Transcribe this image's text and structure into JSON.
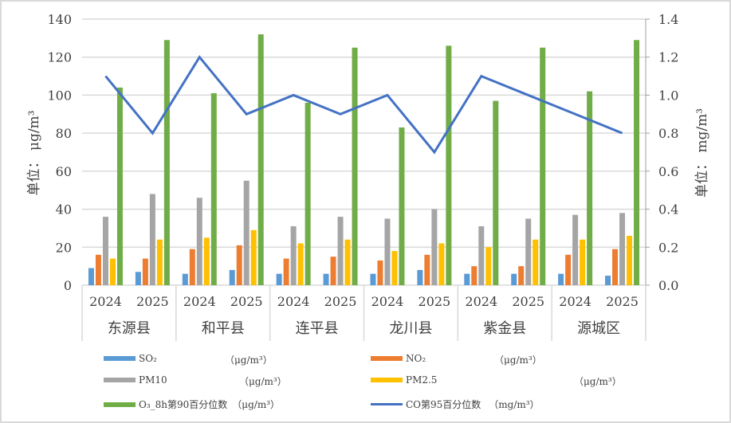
{
  "chart_data": {
    "type": "bar+line",
    "title": "",
    "ylabel": "单位：μg/m³",
    "y2label": "单位：mg/m³",
    "ylim": [
      0,
      140
    ],
    "y2lim": [
      0,
      1.4
    ],
    "yticks": [
      "0",
      "20",
      "40",
      "60",
      "80",
      "100",
      "120",
      "140"
    ],
    "y2ticks": [
      "0.0",
      "0.2",
      "0.4",
      "0.6",
      "0.8",
      "1.0",
      "1.2",
      "1.4"
    ],
    "grid": true,
    "legend_position": "bottom",
    "groups": [
      "东源县",
      "和平县",
      "连平县",
      "龙川县",
      "紫金县",
      "源城区"
    ],
    "categories": [
      "2024",
      "2025",
      "2024",
      "2025",
      "2024",
      "2025",
      "2024",
      "2025",
      "2024",
      "2025",
      "2024",
      "2025"
    ],
    "series": [
      {
        "name": "SO₂",
        "unit": "（μg/m³）",
        "type": "bar",
        "axis": "left",
        "color": "#5b9bd5",
        "values": [
          9,
          7,
          6,
          8,
          6,
          6,
          6,
          8,
          6,
          6,
          6,
          5
        ]
      },
      {
        "name": "NO₂",
        "unit": "（μg/m³）",
        "type": "bar",
        "axis": "left",
        "color": "#ed7d31",
        "values": [
          16,
          14,
          19,
          21,
          14,
          15,
          13,
          16,
          10,
          10,
          16,
          19
        ]
      },
      {
        "name": "PM10",
        "unit": "（μg/m³）",
        "type": "bar",
        "axis": "left",
        "color": "#a5a5a5",
        "values": [
          36,
          48,
          46,
          55,
          31,
          36,
          35,
          40,
          31,
          35,
          37,
          38
        ]
      },
      {
        "name": "PM2.5",
        "unit": "（μg/m³）",
        "type": "bar",
        "axis": "left",
        "color": "#ffc000",
        "values": [
          14,
          24,
          25,
          29,
          22,
          24,
          18,
          22,
          20,
          24,
          24,
          26
        ]
      },
      {
        "name": "O₃_8h第90百分位数",
        "unit": "（μg/m³）",
        "type": "bar",
        "axis": "left",
        "color": "#70ad47",
        "values": [
          104,
          129,
          101,
          132,
          96,
          125,
          83,
          126,
          97,
          125,
          102,
          129
        ]
      },
      {
        "name": "CO第95百分位数",
        "unit": "（mg/m³）",
        "type": "line",
        "axis": "right",
        "color": "#4472c4",
        "values": [
          1.1,
          0.8,
          1.2,
          0.9,
          1.0,
          0.9,
          1.0,
          0.7,
          1.1,
          1.0,
          0.9,
          0.8
        ]
      }
    ]
  },
  "axis": {
    "left_label_prefix": "单位：",
    "left_label_unit": "μg/m³",
    "right_label_prefix": "单位：",
    "right_label_unit": "mg/m³"
  },
  "legend": [
    {
      "label": "SO₂",
      "unit": "（μg/m³）",
      "color": "#5b9bd5",
      "kind": "bar"
    },
    {
      "label": "NO₂",
      "unit": "（μg/m³）",
      "color": "#ed7d31",
      "kind": "bar"
    },
    {
      "label": "PM10",
      "unit": "（μg/m³）",
      "color": "#a5a5a5",
      "kind": "bar"
    },
    {
      "label": "PM2.5",
      "unit": "（μg/m³）",
      "color": "#ffc000",
      "kind": "bar"
    },
    {
      "label": "O₃_8h第90百分位数",
      "unit": "（μg/m³）",
      "color": "#70ad47",
      "kind": "bar"
    },
    {
      "label": "CO第95百分位数",
      "unit": "（mg/m³）",
      "color": "#4472c4",
      "kind": "line"
    }
  ]
}
